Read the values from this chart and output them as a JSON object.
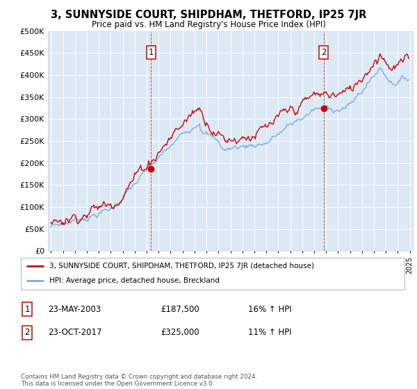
{
  "title": "3, SUNNYSIDE COURT, SHIPDHAM, THETFORD, IP25 7JR",
  "subtitle": "Price paid vs. HM Land Registry's House Price Index (HPI)",
  "bg_color": "#dce9f5",
  "red_line_color": "#cc0000",
  "blue_line_color": "#7aaadd",
  "sale1_x": 2003.37,
  "sale1_price": 187500,
  "sale2_x": 2017.79,
  "sale2_price": 325000,
  "ylim": [
    0,
    500000
  ],
  "yticks": [
    0,
    50000,
    100000,
    150000,
    200000,
    250000,
    300000,
    350000,
    400000,
    450000,
    500000
  ],
  "ytick_labels": [
    "£0",
    "£50K",
    "£100K",
    "£150K",
    "£200K",
    "£250K",
    "£300K",
    "£350K",
    "£400K",
    "£450K",
    "£500K"
  ],
  "legend_line1": "3, SUNNYSIDE COURT, SHIPDHAM, THETFORD, IP25 7JR (detached house)",
  "legend_line2": "HPI: Average price, detached house, Breckland",
  "table_row1": [
    "1",
    "23-MAY-2003",
    "£187,500",
    "16% ↑ HPI"
  ],
  "table_row2": [
    "2",
    "23-OCT-2017",
    "£325,000",
    "11% ↑ HPI"
  ],
  "footer": "Contains HM Land Registry data © Crown copyright and database right 2024.\nThis data is licensed under the Open Government Licence v3.0."
}
